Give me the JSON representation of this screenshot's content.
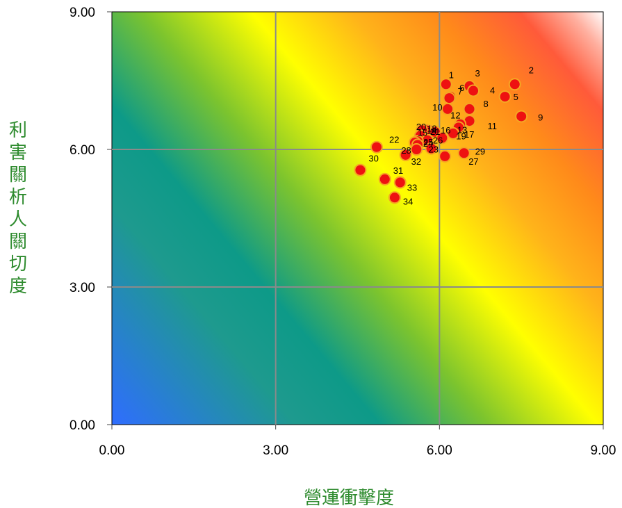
{
  "chart_data": {
    "type": "scatter",
    "xlabel": "營運衝擊度",
    "ylabel": "利害關析人關切度",
    "xlim": [
      0,
      9
    ],
    "ylim": [
      0,
      9
    ],
    "x_ticks": [
      "0.00",
      "3.00",
      "6.00",
      "9.00"
    ],
    "y_ticks": [
      "0.00",
      "3.00",
      "6.00",
      "9.00"
    ],
    "grid": true,
    "background": "diagonal heatmap gradient: blue (low-low) → teal → green → yellow → orange → red → white (high-high)",
    "colors": {
      "marker_fill": "#ee1111",
      "marker_edge": "#f5a623",
      "axis_title": "#2e8b2e",
      "grid": "#8a8a8a"
    },
    "points": [
      {
        "label": "1",
        "x": 6.12,
        "y": 7.42
      },
      {
        "label": "2",
        "x": 7.38,
        "y": 7.42
      },
      {
        "label": "3",
        "x": 6.55,
        "y": 7.38
      },
      {
        "label": "4",
        "x": 6.62,
        "y": 7.28
      },
      {
        "label": "5",
        "x": 7.2,
        "y": 7.15
      },
      {
        "label": "6",
        "x": 6.2,
        "y": 7.15
      },
      {
        "label": "7",
        "x": 6.18,
        "y": 7.12
      },
      {
        "label": "8",
        "x": 6.55,
        "y": 6.88
      },
      {
        "label": "9",
        "x": 7.5,
        "y": 6.72
      },
      {
        "label": "10",
        "x": 6.15,
        "y": 6.88
      },
      {
        "label": "11",
        "x": 6.55,
        "y": 6.62
      },
      {
        "label": "12",
        "x": 6.38,
        "y": 6.55
      },
      {
        "label": "13",
        "x": 6.35,
        "y": 6.48
      },
      {
        "label": "14",
        "x": 5.82,
        "y": 6.4
      },
      {
        "label": "15",
        "x": 5.75,
        "y": 6.42
      },
      {
        "label": "16",
        "x": 5.92,
        "y": 6.38
      },
      {
        "label": "17",
        "x": 6.25,
        "y": 6.35
      },
      {
        "label": "18",
        "x": 5.68,
        "y": 6.42
      },
      {
        "label": "19",
        "x": 6.05,
        "y": 6.25
      },
      {
        "label": "20",
        "x": 5.65,
        "y": 6.3
      },
      {
        "label": "21",
        "x": 5.78,
        "y": 6.2
      },
      {
        "label": "22",
        "x": 4.85,
        "y": 6.05
      },
      {
        "label": "23",
        "x": 5.85,
        "y": 6.02
      },
      {
        "label": "24",
        "x": 5.6,
        "y": 6.18
      },
      {
        "label": "25",
        "x": 5.55,
        "y": 6.15
      },
      {
        "label": "26",
        "x": 5.6,
        "y": 6.1
      },
      {
        "label": "27",
        "x": 6.1,
        "y": 5.85
      },
      {
        "label": "28",
        "x": 5.58,
        "y": 6.0
      },
      {
        "label": "29",
        "x": 6.45,
        "y": 5.92
      },
      {
        "label": "30",
        "x": 4.55,
        "y": 5.55
      },
      {
        "label": "31",
        "x": 5.0,
        "y": 5.35
      },
      {
        "label": "32",
        "x": 5.38,
        "y": 5.88
      },
      {
        "label": "33",
        "x": 5.28,
        "y": 5.28
      },
      {
        "label": "34",
        "x": 5.18,
        "y": 4.95
      }
    ],
    "label_offsets": {
      "1": [
        4,
        -9
      ],
      "2": [
        20,
        -16
      ],
      "3": [
        8,
        -14
      ],
      "4": [
        24,
        4
      ],
      "5": [
        12,
        5
      ],
      "6": [
        13,
        -8
      ],
      "7": [
        12,
        -5
      ],
      "8": [
        20,
        -3
      ],
      "9": [
        24,
        6
      ],
      "10": [
        -22,
        2
      ],
      "11": [
        26,
        12
      ],
      "12": [
        -14,
        -8
      ],
      "13": [
        -2,
        8
      ],
      "14": [
        -4,
        4
      ],
      "15": [
        -12,
        8
      ],
      "16": [
        8,
        2
      ],
      "17": [
        16,
        6
      ],
      "18": [
        7,
        2
      ],
      "19": [
        20,
        2
      ],
      "20": [
        -6,
        -8
      ],
      "21": [
        4,
        -8
      ],
      "22": [
        18,
        -6
      ],
      "23": [
        -4,
        6
      ],
      "24": [
        8,
        8
      ],
      "25": [
        12,
        4
      ],
      "26": [
        22,
        -2
      ],
      "27": [
        34,
        12
      ],
      "28": [
        -22,
        6
      ],
      "29": [
        16,
        2
      ],
      "30": [
        12,
        -12
      ],
      "31": [
        12,
        -8
      ],
      "32": [
        8,
        14
      ],
      "33": [
        10,
        12
      ],
      "34": [
        12,
        10
      ]
    }
  }
}
